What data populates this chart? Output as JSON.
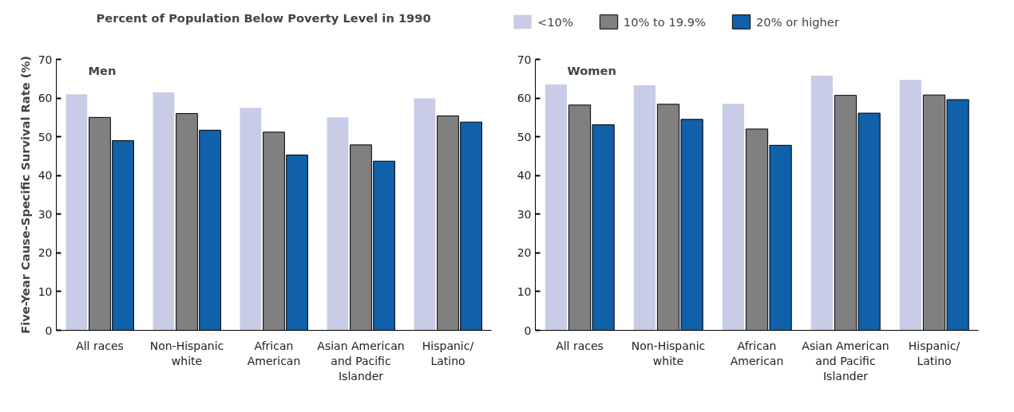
{
  "chart_data": [
    {
      "type": "bar",
      "title": "Men",
      "ylabel": "Five-Year Cause-Specific Survival Rate (%)",
      "legend_title": "Percent of Population Below Poverty Level in 1990",
      "legend": "top",
      "categories": [
        "All races",
        "Non-Hispanic white",
        "African American",
        "Asian American and Pacific Islander",
        "Hispanic/ Latino"
      ],
      "series": [
        {
          "name": "<10%",
          "color": "#c8cce6",
          "values": [
            61,
            61.5,
            57.5,
            55,
            59.9
          ]
        },
        {
          "name": "10% to 19.9%",
          "color": "#808080",
          "values": [
            55,
            56,
            51.2,
            47.9,
            55.4
          ]
        },
        {
          "name": "20% or higher",
          "color": "#1060aa",
          "values": [
            49,
            51.7,
            45.3,
            43.7,
            53.8
          ]
        }
      ],
      "ylim": [
        0,
        70
      ],
      "yticks": [
        0,
        10,
        20,
        30,
        40,
        50,
        60,
        70
      ],
      "grid": false
    },
    {
      "type": "bar",
      "title": "Women",
      "categories": [
        "All races",
        "Non-Hispanic white",
        "African American",
        "Asian American and Pacific Islander",
        "Hispanic/ Latino"
      ],
      "series": [
        {
          "color": "#c8cce6",
          "values": [
            63.5,
            63.3,
            58.5,
            65.8,
            64.7
          ]
        },
        {
          "color": "#808080",
          "values": [
            58.2,
            58.4,
            52,
            60.7,
            60.8
          ]
        },
        {
          "color": "#1060aa",
          "values": [
            53.1,
            54.5,
            47.8,
            56.1,
            59.6
          ]
        }
      ],
      "ylim": [
        0,
        70
      ],
      "yticks": [
        0,
        10,
        20,
        30,
        40,
        50,
        60,
        70
      ],
      "grid": false
    }
  ]
}
